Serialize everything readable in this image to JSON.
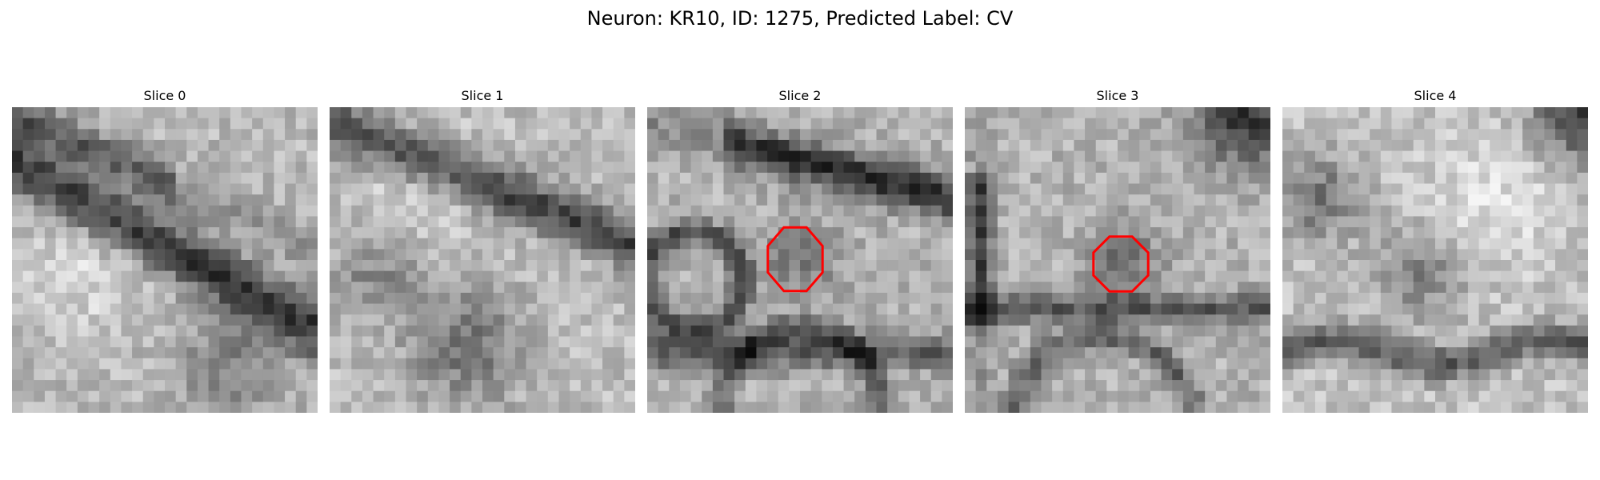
{
  "figure": {
    "title": "Neuron: KR10, ID: 1275, Predicted Label: CV"
  },
  "colors": {
    "background": "#ffffff",
    "marker": "#ff0000",
    "colormap": "grayscale"
  },
  "panels": [
    {
      "title": "Slice 0",
      "has_marker": false
    },
    {
      "title": "Slice 1",
      "has_marker": false
    },
    {
      "title": "Slice 2",
      "has_marker": true
    },
    {
      "title": "Slice 3",
      "has_marker": true
    },
    {
      "title": "Slice 4",
      "has_marker": false
    }
  ]
}
